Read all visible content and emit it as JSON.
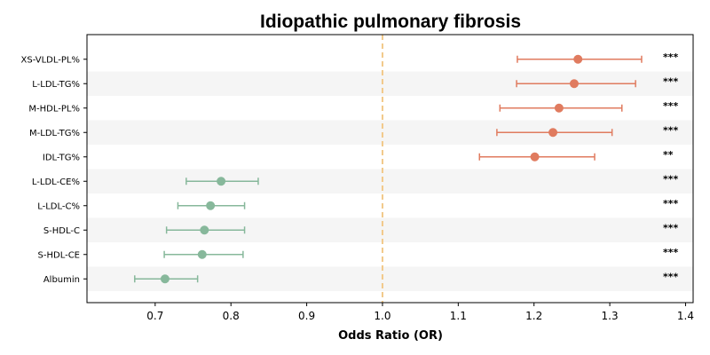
{
  "chart_data": {
    "type": "forest",
    "title": "Idiopathic pulmonary fibrosis",
    "xlabel": "Odds Ratio (OR)",
    "xlim": [
      0.61,
      1.41
    ],
    "xticks": [
      "0.7",
      "0.8",
      "0.9",
      "1.0",
      "1.1",
      "1.2",
      "1.3",
      "1.4"
    ],
    "reference_line": 1.0,
    "colors": {
      "risk": "#e07b5f",
      "protective": "#87b89b",
      "reference": "#f2c98a",
      "band": "#f5f5f5"
    },
    "rows": [
      {
        "label": "XS-VLDL-PL%",
        "or": 1.258,
        "lower": 1.178,
        "upper": 1.342,
        "sig": "***",
        "group": "risk"
      },
      {
        "label": "L-LDL-TG%",
        "or": 1.253,
        "lower": 1.177,
        "upper": 1.334,
        "sig": "***",
        "group": "risk"
      },
      {
        "label": "M-HDL-PL%",
        "or": 1.233,
        "lower": 1.155,
        "upper": 1.316,
        "sig": "***",
        "group": "risk"
      },
      {
        "label": "M-LDL-TG%",
        "or": 1.225,
        "lower": 1.151,
        "upper": 1.303,
        "sig": "***",
        "group": "risk"
      },
      {
        "label": "IDL-TG%",
        "or": 1.201,
        "lower": 1.128,
        "upper": 1.28,
        "sig": "**",
        "group": "risk"
      },
      {
        "label": "L-LDL-CE%",
        "or": 0.787,
        "lower": 0.741,
        "upper": 0.836,
        "sig": "***",
        "group": "protective"
      },
      {
        "label": "L-LDL-C%",
        "or": 0.773,
        "lower": 0.73,
        "upper": 0.818,
        "sig": "***",
        "group": "protective"
      },
      {
        "label": "S-HDL-C",
        "or": 0.765,
        "lower": 0.715,
        "upper": 0.818,
        "sig": "***",
        "group": "protective"
      },
      {
        "label": "S-HDL-CE",
        "or": 0.762,
        "lower": 0.712,
        "upper": 0.816,
        "sig": "***",
        "group": "protective"
      },
      {
        "label": "Albumin",
        "or": 0.713,
        "lower": 0.673,
        "upper": 0.756,
        "sig": "***",
        "group": "protective"
      }
    ]
  }
}
